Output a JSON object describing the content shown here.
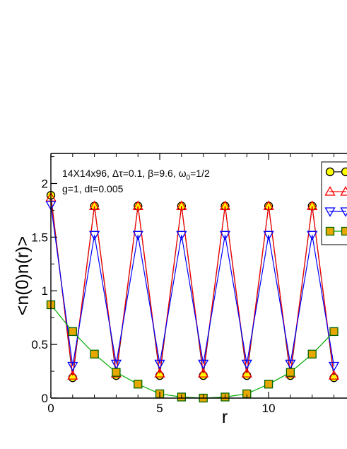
{
  "chart_data": {
    "type": "line",
    "xlabel": "r",
    "ylabel": "<n(0)n(r)>",
    "xlim": [
      0,
      13.6
    ],
    "ylim": [
      0,
      2.28
    ],
    "x_ticks": [
      "0",
      "5",
      "10"
    ],
    "x_tick_values": [
      0,
      5,
      10
    ],
    "y_ticks": [
      "0",
      "0.5",
      "1",
      "1.5",
      "2"
    ],
    "y_tick_values": [
      0,
      0.5,
      1,
      1.5,
      2
    ],
    "annotation_line1": "14X14x96, Δτ=0.1, β=9.6, ω",
    "annotation_line1_sub": "0",
    "annotation_line1_end": "=1/2",
    "annotation_line2": "g=1, dt=0.005",
    "legend_position": "top-right (cropped)",
    "x": [
      0,
      1,
      2,
      3,
      4,
      5,
      6,
      7,
      8,
      9,
      10,
      11,
      12,
      13
    ],
    "series": [
      {
        "marker": "circle",
        "line_color": "#000000",
        "fill_color": "#ffff00",
        "edge_color": "#000000",
        "values": [
          1.89,
          0.19,
          1.79,
          0.21,
          1.79,
          0.21,
          1.79,
          0.21,
          1.79,
          0.21,
          1.79,
          0.21,
          1.79,
          0.19
        ]
      },
      {
        "marker": "triangle-up",
        "line_color": "#ff0000",
        "fill_color": "none",
        "edge_color": "#ff0000",
        "values": [
          1.87,
          0.21,
          1.79,
          0.23,
          1.79,
          0.23,
          1.79,
          0.23,
          1.79,
          0.23,
          1.79,
          0.23,
          1.79,
          0.21
        ]
      },
      {
        "marker": "triangle-down",
        "line_color": "#0000ff",
        "fill_color": "none",
        "edge_color": "#0000ff",
        "values": [
          1.8,
          0.3,
          1.52,
          0.32,
          1.52,
          0.32,
          1.52,
          0.32,
          1.52,
          0.32,
          1.52,
          0.32,
          1.52,
          0.3
        ]
      },
      {
        "marker": "square",
        "line_color": "#00aa00",
        "fill_color": "#e6a800",
        "edge_color": "#006400",
        "values": [
          0.87,
          0.62,
          0.41,
          0.24,
          0.13,
          0.04,
          0.01,
          0.0,
          0.01,
          0.04,
          0.13,
          0.24,
          0.41,
          0.62
        ]
      }
    ]
  }
}
